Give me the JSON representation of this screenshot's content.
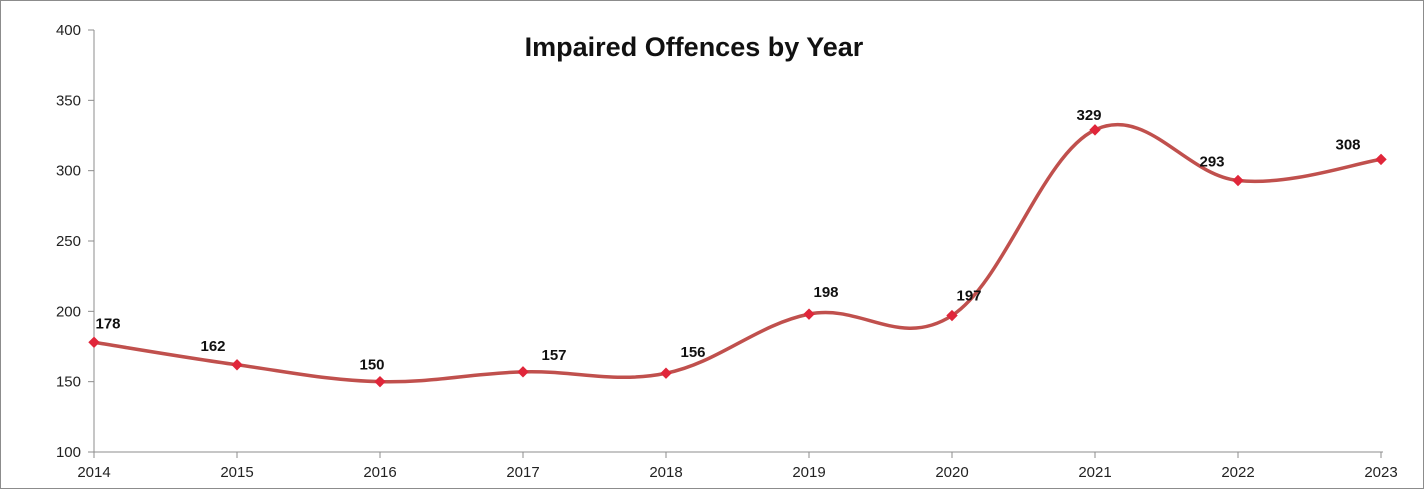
{
  "chart_data": {
    "type": "line",
    "title": "Impaired Offences by Year",
    "xlabel": "",
    "ylabel": "",
    "x": [
      "2014",
      "2015",
      "2016",
      "2017",
      "2018",
      "2019",
      "2020",
      "2021",
      "2022",
      "2023"
    ],
    "series": [
      {
        "values": [
          178,
          162,
          150,
          157,
          156,
          198,
          197,
          329,
          293,
          308
        ],
        "color": "#c0504d",
        "marker_color": "#e0263a",
        "smooth": true
      }
    ],
    "y_ticks": [
      "100",
      "150",
      "200",
      "250",
      "300",
      "350",
      "400"
    ],
    "ylim": [
      100,
      400
    ],
    "grid": false,
    "legend": "none",
    "data_labels": true
  }
}
